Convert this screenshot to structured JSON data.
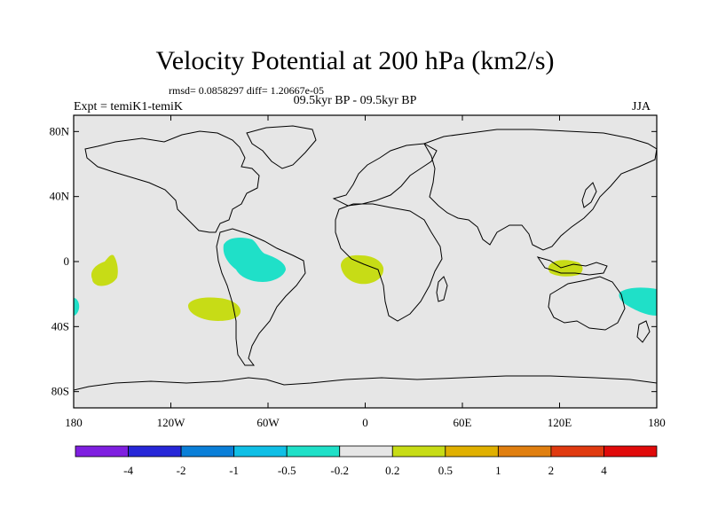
{
  "title": "Velocity Potential at 200 hPa (km2/s)",
  "stats_text": "rmsd= 0.0858297 diff= 1.20667e-05",
  "period_text": "09.5kyr BP - 09.5kyr BP",
  "expt_label": "Expt = temiK1-temiK",
  "season_label": "JJA",
  "map": {
    "lon_range": [
      -180,
      180
    ],
    "lat_range": [
      -90,
      90
    ],
    "lat_ticks": [
      {
        "value": 80,
        "label": "80N"
      },
      {
        "value": 40,
        "label": "40N"
      },
      {
        "value": 0,
        "label": "0"
      },
      {
        "value": -40,
        "label": "40S"
      },
      {
        "value": -80,
        "label": "80S"
      }
    ],
    "lon_ticks": [
      {
        "value": -180,
        "label": "180"
      },
      {
        "value": -120,
        "label": "120W"
      },
      {
        "value": -60,
        "label": "60W"
      },
      {
        "value": 0,
        "label": "0"
      },
      {
        "value": 60,
        "label": "60E"
      },
      {
        "value": 120,
        "label": "120E"
      },
      {
        "value": 180,
        "label": "180"
      }
    ],
    "background_color": "#e6e6e6",
    "anomaly_regions": [
      {
        "name": "central-pacific-positive",
        "color": "#c7dc16",
        "center_lon": -162,
        "center_lat": -4
      },
      {
        "name": "south-pacific-positive",
        "color": "#c7dc16",
        "center_lon": -94,
        "center_lat": -29
      },
      {
        "name": "amazon-negative",
        "color": "#1fe0c8",
        "center_lon": -69,
        "center_lat": 2
      },
      {
        "name": "gulf-of-guinea-positive",
        "color": "#c7dc16",
        "center_lon": 4,
        "center_lat": -3
      },
      {
        "name": "maritime-continent-positive",
        "color": "#c7dc16",
        "center_lon": 122,
        "center_lat": -6
      },
      {
        "name": "southwest-pacific-negative",
        "color": "#1fe0c8",
        "center_lon": 170,
        "center_lat": -23
      },
      {
        "name": "dateline-south-negative",
        "color": "#1fe0c8",
        "center_lon": -179,
        "center_lat": -27
      }
    ]
  },
  "colorbar": {
    "colors": [
      "#7f1fe0",
      "#2727d8",
      "#0a7fd8",
      "#10bfe6",
      "#1fe0c8",
      "#e6e6e6",
      "#c7dc16",
      "#e0b000",
      "#e07f10",
      "#e03a10",
      "#e00a0a"
    ],
    "labels": [
      "-4",
      "-2",
      "-1",
      "-0.5",
      "-0.2",
      "0.2",
      "0.5",
      "1",
      "2",
      "4"
    ]
  }
}
